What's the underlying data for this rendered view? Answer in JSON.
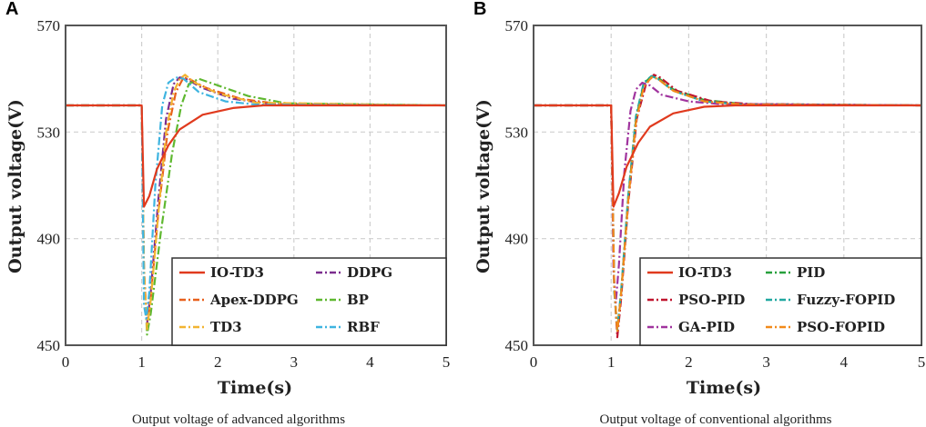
{
  "chart_data": [
    {
      "type": "line",
      "panel": "A",
      "caption": "Output voltage of advanced algorithms",
      "xlabel": "Time(s)",
      "ylabel": "Output voltage(V)",
      "xlim": [
        0,
        5
      ],
      "ylim": [
        450,
        570
      ],
      "xticks": [
        "0",
        "1",
        "2",
        "3",
        "4",
        "5"
      ],
      "yticks": [
        "450",
        "490",
        "530",
        "570"
      ],
      "grid": true,
      "legend_position": "bottom-right",
      "series": [
        {
          "name": "IO-TD3",
          "color": "#e03a1e",
          "dash": "solid",
          "points": [
            [
              0,
              540
            ],
            [
              1.0,
              540
            ],
            [
              1.03,
              502
            ],
            [
              1.1,
              506
            ],
            [
              1.2,
              516
            ],
            [
              1.35,
              525
            ],
            [
              1.5,
              531
            ],
            [
              1.8,
              536.5
            ],
            [
              2.2,
              539
            ],
            [
              2.6,
              540
            ],
            [
              5,
              540
            ]
          ]
        },
        {
          "name": "DDPG",
          "color": "#7b2d8e",
          "dash": "dashdot",
          "points": [
            [
              0,
              540
            ],
            [
              1.0,
              540
            ],
            [
              1.03,
              478
            ],
            [
              1.07,
              458
            ],
            [
              1.12,
              470
            ],
            [
              1.22,
              505
            ],
            [
              1.32,
              535
            ],
            [
              1.42,
              548
            ],
            [
              1.5,
              550.5
            ],
            [
              1.58,
              550
            ],
            [
              1.8,
              546.5
            ],
            [
              2.2,
              542.5
            ],
            [
              2.7,
              540.5
            ],
            [
              5,
              540
            ]
          ]
        },
        {
          "name": "Apex-DDPG",
          "color": "#e8601c",
          "dash": "dashdot",
          "points": [
            [
              0,
              540
            ],
            [
              1.0,
              540
            ],
            [
              1.03,
              478
            ],
            [
              1.07,
              457
            ],
            [
              1.12,
              468
            ],
            [
              1.22,
              500
            ],
            [
              1.34,
              530
            ],
            [
              1.45,
              545
            ],
            [
              1.55,
              550.5
            ],
            [
              1.62,
              550
            ],
            [
              1.85,
              546.5
            ],
            [
              2.3,
              542.5
            ],
            [
              2.8,
              540.5
            ],
            [
              5,
              540
            ]
          ]
        },
        {
          "name": "BP",
          "color": "#5fb830",
          "dash": "dashdot",
          "points": [
            [
              0,
              540
            ],
            [
              1.0,
              540
            ],
            [
              1.03,
              478
            ],
            [
              1.07,
              454
            ],
            [
              1.12,
              462
            ],
            [
              1.25,
              492
            ],
            [
              1.4,
              522
            ],
            [
              1.52,
              540
            ],
            [
              1.62,
              548
            ],
            [
              1.75,
              550
            ],
            [
              2.0,
              547.5
            ],
            [
              2.4,
              543.5
            ],
            [
              2.9,
              540.8
            ],
            [
              5,
              540
            ]
          ]
        },
        {
          "name": "TD3",
          "color": "#f2b431",
          "dash": "dashdot",
          "points": [
            [
              0,
              540
            ],
            [
              1.0,
              540
            ],
            [
              1.03,
              478
            ],
            [
              1.07,
              456
            ],
            [
              1.12,
              467
            ],
            [
              1.22,
              500
            ],
            [
              1.32,
              530
            ],
            [
              1.42,
              545
            ],
            [
              1.5,
              550
            ],
            [
              1.57,
              551.5
            ],
            [
              1.7,
              548.5
            ],
            [
              2.0,
              544.5
            ],
            [
              2.5,
              541
            ],
            [
              5,
              540
            ]
          ]
        },
        {
          "name": "RBF",
          "color": "#3eb4e0",
          "dash": "dashdot",
          "points": [
            [
              0,
              540
            ],
            [
              1.0,
              540
            ],
            [
              1.03,
              465
            ],
            [
              1.06,
              460
            ],
            [
              1.1,
              470
            ],
            [
              1.18,
              510
            ],
            [
              1.27,
              540
            ],
            [
              1.35,
              548.5
            ],
            [
              1.45,
              550.5
            ],
            [
              1.55,
              550
            ],
            [
              1.75,
              545
            ],
            [
              2.1,
              541.5
            ],
            [
              2.5,
              540.3
            ],
            [
              5,
              540
            ]
          ]
        }
      ]
    },
    {
      "type": "line",
      "panel": "B",
      "caption": "Output voltage of conventional algorithms",
      "xlabel": "Time(s)",
      "ylabel": "Output voltage(V)",
      "xlim": [
        0,
        5
      ],
      "ylim": [
        450,
        570
      ],
      "xticks": [
        "0",
        "1",
        "2",
        "3",
        "4",
        "5"
      ],
      "yticks": [
        "450",
        "490",
        "530",
        "570"
      ],
      "grid": true,
      "legend_position": "bottom-right",
      "series": [
        {
          "name": "IO-TD3",
          "color": "#e03a1e",
          "dash": "solid",
          "points": [
            [
              0,
              540
            ],
            [
              1.0,
              540
            ],
            [
              1.03,
              502
            ],
            [
              1.1,
              507
            ],
            [
              1.2,
              517
            ],
            [
              1.35,
              526
            ],
            [
              1.5,
              532
            ],
            [
              1.8,
              537
            ],
            [
              2.2,
              539.5
            ],
            [
              2.6,
              540
            ],
            [
              5,
              540
            ]
          ]
        },
        {
          "name": "PID",
          "color": "#27a03c",
          "dash": "dashdot",
          "points": [
            [
              0,
              540
            ],
            [
              1.0,
              540
            ],
            [
              1.04,
              472
            ],
            [
              1.08,
              455
            ],
            [
              1.13,
              470
            ],
            [
              1.22,
              505
            ],
            [
              1.32,
              535
            ],
            [
              1.42,
              548
            ],
            [
              1.52,
              551
            ],
            [
              1.6,
              550.5
            ],
            [
              1.8,
              546
            ],
            [
              2.2,
              542
            ],
            [
              2.7,
              540.5
            ],
            [
              5,
              540
            ]
          ]
        },
        {
          "name": "PSO-PID",
          "color": "#c0142e",
          "dash": "dashdot",
          "points": [
            [
              0,
              540
            ],
            [
              1.0,
              540
            ],
            [
              1.04,
              472
            ],
            [
              1.08,
              453
            ],
            [
              1.13,
              468
            ],
            [
              1.22,
              503
            ],
            [
              1.33,
              535
            ],
            [
              1.45,
              548
            ],
            [
              1.55,
              551.5
            ],
            [
              1.63,
              550.5
            ],
            [
              1.85,
              545.5
            ],
            [
              2.3,
              541.5
            ],
            [
              2.8,
              540.5
            ],
            [
              5,
              540
            ]
          ]
        },
        {
          "name": "Fuzzy-FOPID",
          "color": "#20a8a0",
          "dash": "dashdot",
          "points": [
            [
              0,
              540
            ],
            [
              1.0,
              540
            ],
            [
              1.04,
              470
            ],
            [
              1.08,
              456
            ],
            [
              1.13,
              471
            ],
            [
              1.22,
              506
            ],
            [
              1.32,
              536
            ],
            [
              1.42,
              548.5
            ],
            [
              1.52,
              551
            ],
            [
              1.6,
              550
            ],
            [
              1.8,
              545.5
            ],
            [
              2.2,
              541.5
            ],
            [
              2.7,
              540.3
            ],
            [
              5,
              540
            ]
          ]
        },
        {
          "name": "GA-PID",
          "color": "#a0349e",
          "dash": "dashdot",
          "points": [
            [
              0,
              540
            ],
            [
              1.0,
              540
            ],
            [
              1.03,
              478
            ],
            [
              1.06,
              466
            ],
            [
              1.1,
              480
            ],
            [
              1.17,
              515
            ],
            [
              1.25,
              538
            ],
            [
              1.32,
              546
            ],
            [
              1.4,
              548.5
            ],
            [
              1.5,
              547.5
            ],
            [
              1.65,
              544
            ],
            [
              2.0,
              541.5
            ],
            [
              2.4,
              540.5
            ],
            [
              5,
              540
            ]
          ]
        },
        {
          "name": "PSO-FOPID",
          "color": "#f28a1a",
          "dash": "dashdot",
          "points": [
            [
              0,
              540
            ],
            [
              1.0,
              540
            ],
            [
              1.04,
              472
            ],
            [
              1.08,
              455
            ],
            [
              1.13,
              470
            ],
            [
              1.22,
              504
            ],
            [
              1.32,
              534
            ],
            [
              1.42,
              547
            ],
            [
              1.52,
              550.5
            ],
            [
              1.6,
              550
            ],
            [
              1.8,
              545.5
            ],
            [
              2.2,
              541.5
            ],
            [
              2.7,
              540.3
            ],
            [
              5,
              540
            ]
          ]
        }
      ]
    }
  ]
}
